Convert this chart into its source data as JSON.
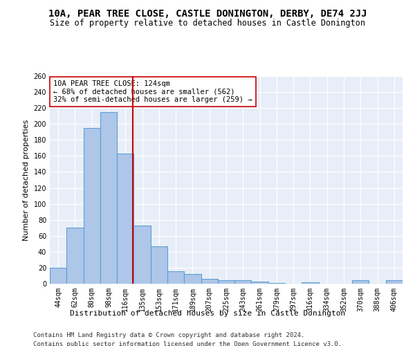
{
  "title1": "10A, PEAR TREE CLOSE, CASTLE DONINGTON, DERBY, DE74 2JJ",
  "title2": "Size of property relative to detached houses in Castle Donington",
  "xlabel": "Distribution of detached houses by size in Castle Donington",
  "ylabel": "Number of detached properties",
  "categories": [
    "44sqm",
    "62sqm",
    "80sqm",
    "98sqm",
    "116sqm",
    "135sqm",
    "153sqm",
    "171sqm",
    "189sqm",
    "207sqm",
    "225sqm",
    "243sqm",
    "261sqm",
    "279sqm",
    "297sqm",
    "316sqm",
    "334sqm",
    "352sqm",
    "370sqm",
    "388sqm",
    "406sqm"
  ],
  "values": [
    20,
    70,
    195,
    215,
    163,
    73,
    47,
    16,
    12,
    6,
    4,
    4,
    3,
    1,
    0,
    2,
    0,
    0,
    4,
    0,
    4
  ],
  "bar_color": "#aec6e8",
  "bar_edgecolor": "#5a9fd4",
  "bar_linewidth": 0.8,
  "vline_color": "#cc0000",
  "vline_linewidth": 1.5,
  "annotation_text": "10A PEAR TREE CLOSE: 124sqm\n← 68% of detached houses are smaller (562)\n32% of semi-detached houses are larger (259) →",
  "annotation_box_edgecolor": "#cc0000",
  "annotation_box_facecolor": "#ffffff",
  "ylim": [
    0,
    260
  ],
  "yticks": [
    0,
    20,
    40,
    60,
    80,
    100,
    120,
    140,
    160,
    180,
    200,
    220,
    240,
    260
  ],
  "background_color": "#e8eef8",
  "footer1": "Contains HM Land Registry data © Crown copyright and database right 2024.",
  "footer2": "Contains public sector information licensed under the Open Government Licence v3.0.",
  "title1_fontsize": 10,
  "title2_fontsize": 8.5,
  "xlabel_fontsize": 8,
  "ylabel_fontsize": 8,
  "tick_fontsize": 7,
  "annotation_fontsize": 7.5,
  "footer_fontsize": 6.5
}
